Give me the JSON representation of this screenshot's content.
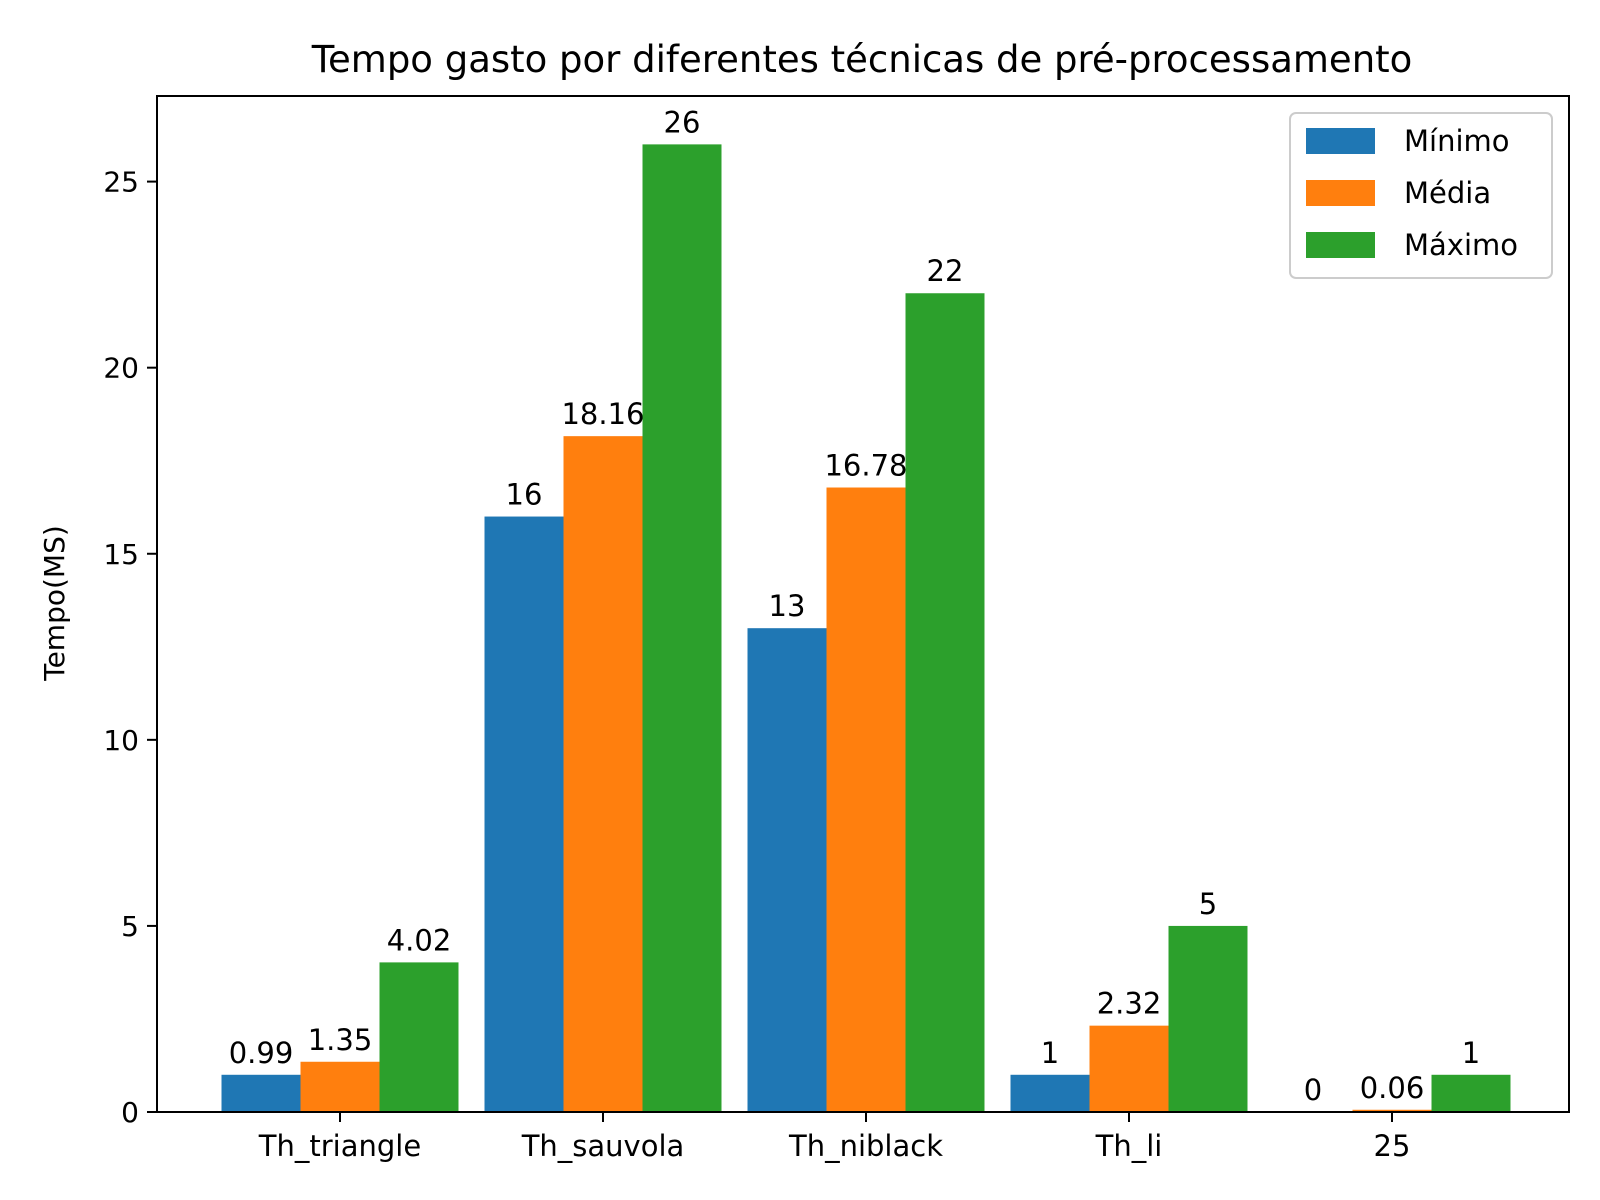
{
  "chart_data": {
    "type": "bar",
    "title": "Tempo gasto por diferentes técnicas de pré-processamento",
    "xlabel": "",
    "ylabel": "Tempo(MS)",
    "ylim": [
      0,
      27.3
    ],
    "yticks": [
      0,
      5,
      10,
      15,
      20,
      25
    ],
    "grid": false,
    "legend_position": "top-right",
    "categories": [
      "Th_triangle",
      "Th_sauvola",
      "Th_niblack",
      "Th_li",
      "25"
    ],
    "series": [
      {
        "name": "Mínimo",
        "color": "#1f77b4",
        "values": [
          1,
          16,
          13,
          1,
          0
        ],
        "labels": [
          "0.99",
          "16",
          "13",
          "1",
          "0"
        ]
      },
      {
        "name": "Média",
        "color": "#ff7f0e",
        "values": [
          1.35,
          18.16,
          16.78,
          2.32,
          0.06
        ],
        "labels": [
          "1.35",
          "18.16",
          "16.78",
          "2.32",
          "0.06"
        ]
      },
      {
        "name": "Máximo",
        "color": "#2ca02c",
        "values": [
          4.02,
          26,
          22,
          5,
          1
        ],
        "labels": [
          "4.02",
          "26",
          "22",
          "5",
          "1"
        ]
      }
    ]
  }
}
